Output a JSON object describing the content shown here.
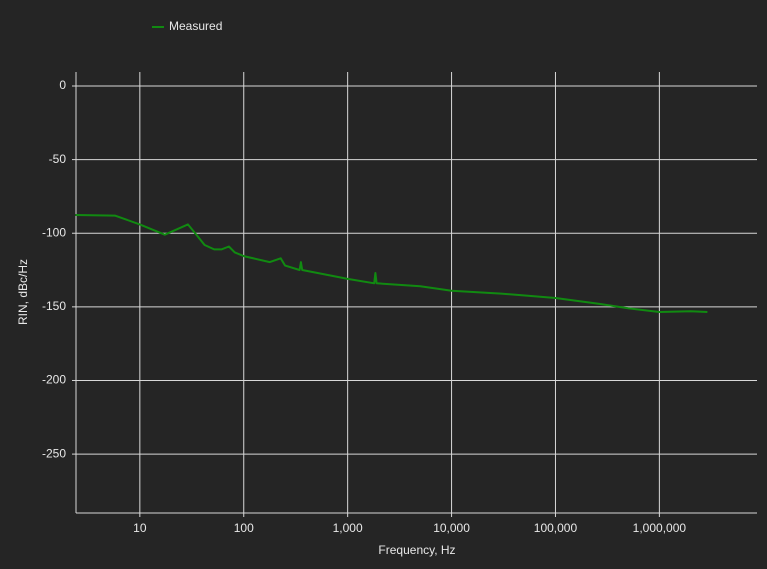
{
  "chart_data": {
    "type": "line",
    "xlabel": "Frequency, Hz",
    "ylabel": "RIN, dBc/Hz",
    "xscale": "log",
    "grid": true,
    "legend": "top-left",
    "x": [
      2.4,
      5.75,
      10,
      17.4,
      29,
      35,
      42,
      52,
      61,
      72,
      82,
      100,
      178,
      227,
      250,
      345,
      355,
      365,
      1000,
      1800,
      1850,
      1900,
      5000,
      10000,
      30000,
      100000,
      265000,
      500000,
      1000000,
      2000000,
      2900000
    ],
    "series": [
      {
        "name": "Measured",
        "color": "#118a11",
        "values": [
          -87.6,
          -88,
          -94,
          -101,
          -94,
          -101,
          -108,
          -111,
          -111,
          -109,
          -113,
          -115.5,
          -119.6,
          -117,
          -122,
          -125,
          -119.6,
          -125,
          -131,
          -134,
          -127,
          -134,
          -136,
          -139,
          -141,
          -144,
          -148,
          -151,
          -153.5,
          -153,
          -153.5
        ]
      }
    ],
    "xlim": [
      2.43,
      8700000
    ],
    "ylim": [
      -290,
      9.5
    ],
    "xticks": [
      10,
      100,
      {
        "value": 1000,
        "label": "1,000"
      },
      {
        "value": 10000,
        "label": "10,000"
      },
      {
        "value": 100000,
        "label": "100,000"
      },
      {
        "value": 1000000,
        "label": "1,000,000"
      }
    ],
    "yticks": [
      0,
      -50,
      -100,
      -150,
      -200,
      -250
    ]
  }
}
